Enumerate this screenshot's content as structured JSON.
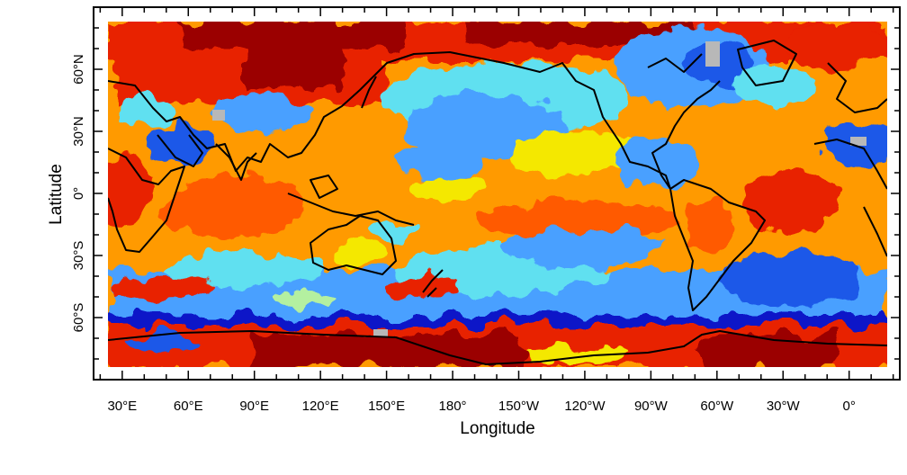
{
  "map": {
    "x_axis_title": "Longitude",
    "y_axis_title": "Latitude",
    "lon_ticks": [
      {
        "deg": 30,
        "label": "30°E"
      },
      {
        "deg": 60,
        "label": "60°E"
      },
      {
        "deg": 90,
        "label": "90°E"
      },
      {
        "deg": 120,
        "label": "120°E"
      },
      {
        "deg": 150,
        "label": "150°E"
      },
      {
        "deg": 180,
        "label": "180°"
      },
      {
        "deg": 210,
        "label": "150°W"
      },
      {
        "deg": 240,
        "label": "120°W"
      },
      {
        "deg": 270,
        "label": "90°W"
      },
      {
        "deg": 300,
        "label": "60°W"
      },
      {
        "deg": 330,
        "label": "30°W"
      },
      {
        "deg": 360,
        "label": "0°"
      }
    ],
    "lat_ticks": [
      {
        "deg": 60,
        "label": "60°N"
      },
      {
        "deg": 30,
        "label": "30°N"
      },
      {
        "deg": 0,
        "label": "0°"
      },
      {
        "deg": -30,
        "label": "30°S"
      },
      {
        "deg": -60,
        "label": "60°S"
      }
    ],
    "lon_range_deg": [
      17,
      383
    ],
    "lat_range_deg": [
      -90,
      90
    ],
    "colors": {
      "dark_red": "#9b0000",
      "red": "#e82000",
      "orange_red": "#ff5a00",
      "orange": "#ff9a00",
      "yellow": "#f4e800",
      "light_green": "#b4f0a0",
      "cyan": "#60e0f0",
      "light_blue": "#4aa0ff",
      "blue": "#1a58e8",
      "dark_blue": "#0a18c8",
      "gray": "#b8b8b8",
      "coastline": "#000000"
    }
  }
}
